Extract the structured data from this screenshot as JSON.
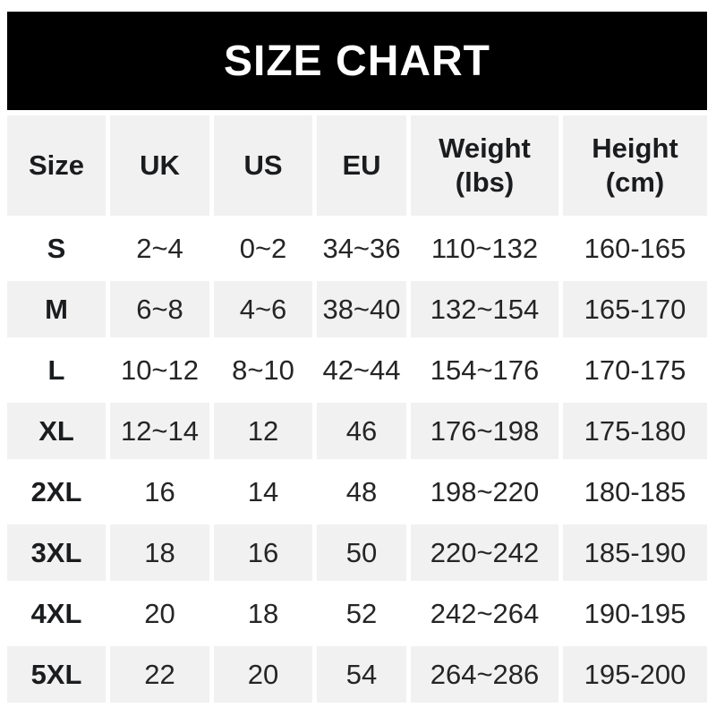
{
  "colors": {
    "banner_bg": "#000000",
    "banner_text": "#ffffff",
    "shaded_cell": "#f1f1f1",
    "data_text": "#252525",
    "header_text": "#1b1c1e",
    "page_bg": "#ffffff"
  },
  "banner": {
    "title": "SIZE CHART"
  },
  "header_display": {
    "size": "Size",
    "uk": "UK",
    "us": "US",
    "eu": "EU",
    "weight": "Weight\n(lbs)",
    "height": "Height\n(cm)"
  },
  "chart_data": {
    "type": "table",
    "title": "SIZE CHART",
    "columns": [
      "Size",
      "UK",
      "US",
      "EU",
      "Weight (lbs)",
      "Height (cm)"
    ],
    "rows": [
      [
        "S",
        "2~4",
        "0~2",
        "34~36",
        "110~132",
        "160-165"
      ],
      [
        "M",
        "6~8",
        "4~6",
        "38~40",
        "132~154",
        "165-170"
      ],
      [
        "L",
        "10~12",
        "8~10",
        "42~44",
        "154~176",
        "170-175"
      ],
      [
        "XL",
        "12~14",
        "12",
        "46",
        "176~198",
        "175-180"
      ],
      [
        "2XL",
        "16",
        "14",
        "48",
        "198~220",
        "180-185"
      ],
      [
        "3XL",
        "18",
        "16",
        "50",
        "220~242",
        "185-190"
      ],
      [
        "4XL",
        "20",
        "18",
        "52",
        "242~264",
        "190-195"
      ],
      [
        "5XL",
        "22",
        "20",
        "54",
        "264~286",
        "195-200"
      ]
    ]
  }
}
